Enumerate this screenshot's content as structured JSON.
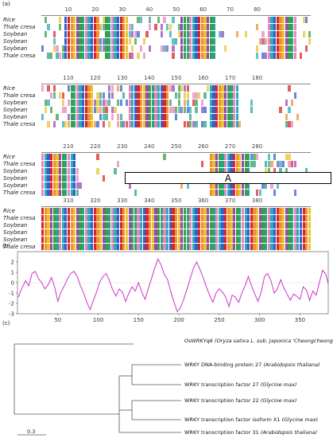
{
  "panels": {
    "a": "(a)",
    "b": "(b)",
    "c": "(c)"
  },
  "alignment": {
    "sequences": [
      "Rice",
      "Thale cresa",
      "Soybean",
      "Soybean",
      "Soybean",
      "Thale cresa"
    ],
    "blocks": [
      {
        "ruler": [
          "10",
          "20",
          "30",
          "40",
          "50",
          "60",
          "70",
          "80"
        ]
      },
      {
        "ruler": [
          "110",
          "120",
          "130",
          "140",
          "150",
          "160",
          "170",
          "180"
        ]
      },
      {
        "ruler": [
          "210",
          "220",
          "230",
          "240",
          "250",
          "260",
          "270",
          "280"
        ]
      },
      {
        "ruler": [
          "310",
          "320",
          "330",
          "340",
          "350",
          "360",
          "370",
          "380"
        ]
      }
    ],
    "domain_box_label": "A"
  },
  "colors": {
    "red": "#d7191c",
    "green": "#2c9a3a",
    "blue": "#2b54c9",
    "purple": "#8e3fb0",
    "cyan": "#20a6b5",
    "yellow": "#e8c020",
    "pink": "#e77fb7",
    "orange": "#f08a24",
    "teal": "#1b9e77",
    "magenta_line": "#cc33cc"
  },
  "chart_data": {
    "type": "line",
    "title": "",
    "xlabel": "",
    "ylabel": "",
    "xticks": [
      "50",
      "100",
      "150",
      "200",
      "250",
      "300",
      "350"
    ],
    "yticks": [
      "2",
      "1",
      "0",
      "-1",
      "-2",
      "-3"
    ],
    "xlim": [
      0,
      385
    ],
    "ylim": [
      -3,
      3
    ],
    "series": [
      {
        "values": [
          [
            1,
            -1.4
          ],
          [
            5,
            -0.6
          ],
          [
            10,
            0.2
          ],
          [
            14,
            -0.3
          ],
          [
            18,
            0.9
          ],
          [
            22,
            1.1
          ],
          [
            26,
            0.4
          ],
          [
            30,
            0.0
          ],
          [
            34,
            -0.6
          ],
          [
            38,
            -0.2
          ],
          [
            42,
            0.5
          ],
          [
            46,
            -0.4
          ],
          [
            50,
            -1.8
          ],
          [
            54,
            -0.9
          ],
          [
            58,
            -0.3
          ],
          [
            62,
            0.4
          ],
          [
            66,
            0.9
          ],
          [
            70,
            1.1
          ],
          [
            74,
            0.6
          ],
          [
            78,
            -0.3
          ],
          [
            82,
            -1.0
          ],
          [
            86,
            -1.9
          ],
          [
            90,
            -2.6
          ],
          [
            94,
            -1.7
          ],
          [
            98,
            -0.9
          ],
          [
            102,
            0.1
          ],
          [
            106,
            0.6
          ],
          [
            110,
            0.9
          ],
          [
            114,
            0.2
          ],
          [
            118,
            -0.7
          ],
          [
            122,
            -1.3
          ],
          [
            126,
            -0.6
          ],
          [
            130,
            -0.9
          ],
          [
            134,
            -1.8
          ],
          [
            138,
            -1.0
          ],
          [
            142,
            -0.4
          ],
          [
            146,
            -0.8
          ],
          [
            150,
            0.0
          ],
          [
            154,
            -0.9
          ],
          [
            158,
            -1.6
          ],
          [
            162,
            -0.6
          ],
          [
            166,
            0.4
          ],
          [
            170,
            1.4
          ],
          [
            174,
            2.3
          ],
          [
            178,
            1.7
          ],
          [
            182,
            0.8
          ],
          [
            186,
            0.3
          ],
          [
            190,
            -0.9
          ],
          [
            194,
            -1.9
          ],
          [
            198,
            -2.8
          ],
          [
            202,
            -2.4
          ],
          [
            206,
            -1.6
          ],
          [
            210,
            -0.6
          ],
          [
            214,
            0.4
          ],
          [
            218,
            1.4
          ],
          [
            222,
            2.0
          ],
          [
            226,
            1.3
          ],
          [
            230,
            0.5
          ],
          [
            234,
            -0.4
          ],
          [
            238,
            -1.2
          ],
          [
            242,
            -1.9
          ],
          [
            246,
            -1.0
          ],
          [
            250,
            -0.6
          ],
          [
            254,
            -0.9
          ],
          [
            258,
            -1.4
          ],
          [
            262,
            -2.3
          ],
          [
            266,
            -1.2
          ],
          [
            270,
            -1.4
          ],
          [
            274,
            -1.9
          ],
          [
            278,
            -1.0
          ],
          [
            282,
            -0.3
          ],
          [
            286,
            0.6
          ],
          [
            290,
            -0.3
          ],
          [
            294,
            -1.1
          ],
          [
            298,
            -1.8
          ],
          [
            302,
            -0.9
          ],
          [
            306,
            0.6
          ],
          [
            310,
            0.9
          ],
          [
            314,
            0.2
          ],
          [
            318,
            -1.0
          ],
          [
            322,
            -0.6
          ],
          [
            326,
            0.3
          ],
          [
            330,
            -0.5
          ],
          [
            334,
            -1.1
          ],
          [
            338,
            -1.7
          ],
          [
            342,
            -1.1
          ],
          [
            346,
            -1.3
          ],
          [
            350,
            -1.6
          ],
          [
            354,
            -0.4
          ],
          [
            358,
            -0.7
          ],
          [
            362,
            -1.7
          ],
          [
            366,
            -0.8
          ],
          [
            370,
            -1.2
          ],
          [
            374,
            0.0
          ],
          [
            378,
            1.2
          ],
          [
            382,
            0.8
          ],
          [
            385,
            -0.1
          ]
        ]
      }
    ]
  },
  "tree": {
    "leaves": [
      {
        "gene": "OsWRKYq6",
        "species": "(Oryza sativa L. sub. Japonica 'Cheongcheong')"
      },
      {
        "gene": "WRKY DNA-binding protein 27",
        "species": "(Arabidopsis thaliana)"
      },
      {
        "gene": "WRKY transcription factor 27",
        "species": "(Glycine max)"
      },
      {
        "gene": "WRKY transcription factor 22",
        "species": "(Glycine max)"
      },
      {
        "gene": "WRKY transcription factor isoform X1",
        "species": "(Glycine max)"
      },
      {
        "gene": "WRKY transcription factor 31",
        "species": "(Arabidopsis thaliana)"
      }
    ],
    "scale_label": "0.3"
  }
}
